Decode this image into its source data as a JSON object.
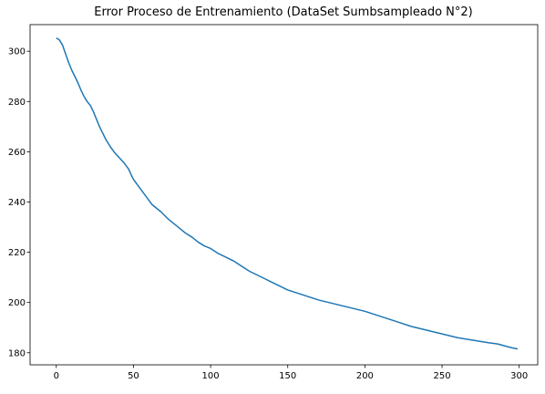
{
  "chart_data": {
    "type": "line",
    "title": "Error Proceso de Entrenamiento (DataSet Sumbsampleado N°2)",
    "xlabel": "",
    "ylabel": "",
    "xlim": [
      -17,
      312
    ],
    "ylim": [
      175.2,
      310.6
    ],
    "x_ticks": [
      0,
      50,
      100,
      150,
      200,
      250,
      300
    ],
    "y_ticks": [
      180,
      200,
      220,
      240,
      260,
      280,
      300
    ],
    "grid": false,
    "line_color": "#1f77b4",
    "series": [
      {
        "x": [
          0,
          2,
          4,
          6,
          8,
          10,
          12,
          14,
          16,
          18,
          20,
          22,
          24,
          26,
          28,
          30,
          32,
          35,
          38,
          41,
          44,
          47,
          48,
          50,
          53,
          56,
          59,
          62,
          65,
          68,
          72,
          76,
          80,
          84,
          88,
          92,
          96,
          100,
          105,
          110,
          115,
          120,
          125,
          130,
          135,
          140,
          145,
          150,
          155,
          160,
          170,
          180,
          190,
          200,
          210,
          220,
          230,
          240,
          250,
          260,
          270,
          280,
          286,
          289,
          295,
          299
        ],
        "values": [
          305.3,
          304.5,
          302.5,
          299.0,
          295.5,
          292.5,
          290.0,
          287.5,
          284.5,
          282.0,
          280.0,
          278.5,
          276.0,
          273.0,
          270.0,
          267.5,
          265.0,
          262.0,
          259.5,
          257.5,
          255.5,
          253.0,
          251.5,
          249.0,
          246.5,
          244.0,
          241.5,
          239.0,
          237.5,
          236.0,
          233.5,
          231.5,
          229.5,
          227.5,
          226.0,
          224.0,
          222.5,
          221.5,
          219.5,
          218.0,
          216.5,
          214.5,
          212.5,
          211.0,
          209.5,
          208.0,
          206.5,
          205.0,
          204.0,
          203.0,
          201.0,
          199.5,
          198.0,
          196.5,
          194.5,
          192.5,
          190.5,
          189.0,
          187.5,
          186.0,
          185.0,
          184.0,
          183.5,
          183.0,
          182.0,
          181.5
        ]
      }
    ]
  }
}
